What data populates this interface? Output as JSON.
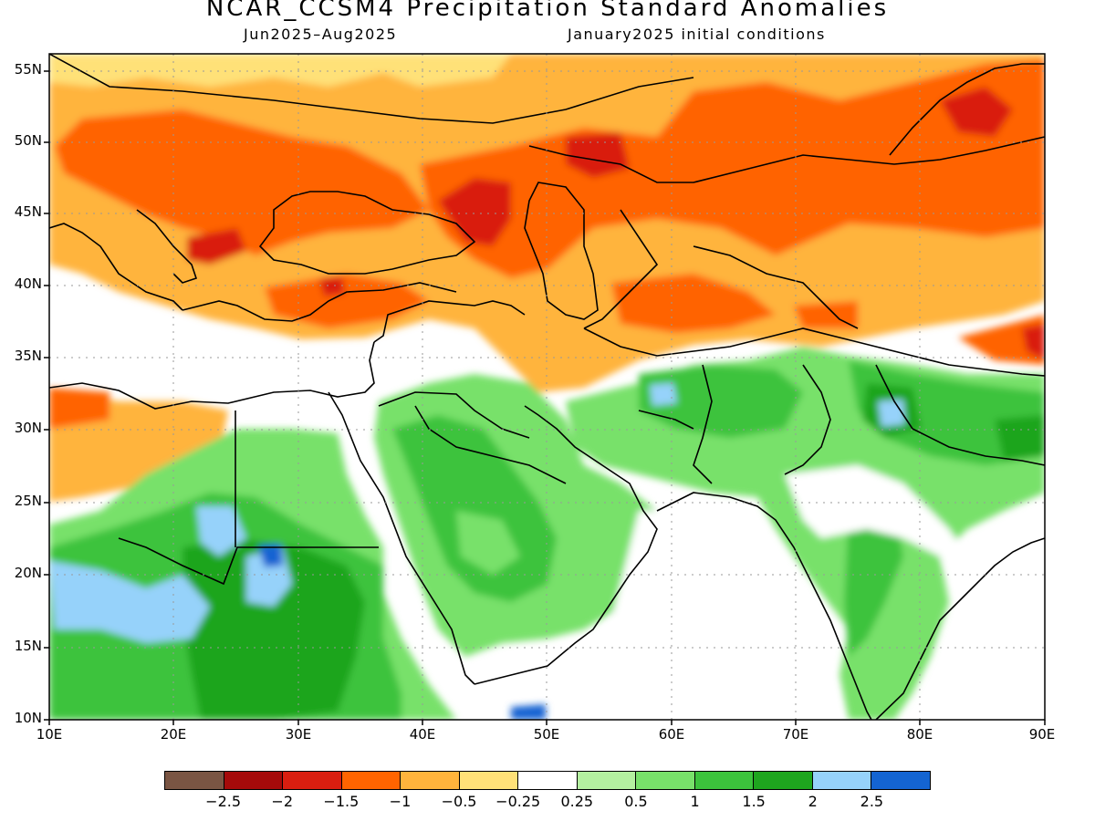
{
  "title": "NCAR_CCSM4 Precipitation Standard Anomalies",
  "subtitle_period": "Jun2025–Aug2025",
  "subtitle_init": "January2025 initial conditions",
  "lat_labels": [
    "55N",
    "50N",
    "45N",
    "40N",
    "35N",
    "30N",
    "25N",
    "20N",
    "15N",
    "10N"
  ],
  "lon_labels": [
    "10E",
    "20E",
    "30E",
    "40E",
    "50E",
    "60E",
    "70E",
    "80E",
    "90E"
  ],
  "colorbar": {
    "colors": [
      "#7a5543",
      "#a50a0a",
      "#d91e10",
      "#ff6400",
      "#ffb43c",
      "#ffe178",
      "#ffffff",
      "#b4f0a0",
      "#78e16a",
      "#3cc33c",
      "#1ea51e",
      "#96d2fa",
      "#1464d2"
    ],
    "labels": [
      "−2.5",
      "−2",
      "−1.5",
      "−1",
      "−0.5",
      "−0.25",
      "0.25",
      "0.5",
      "1",
      "1.5",
      "2",
      "2.5"
    ]
  }
}
